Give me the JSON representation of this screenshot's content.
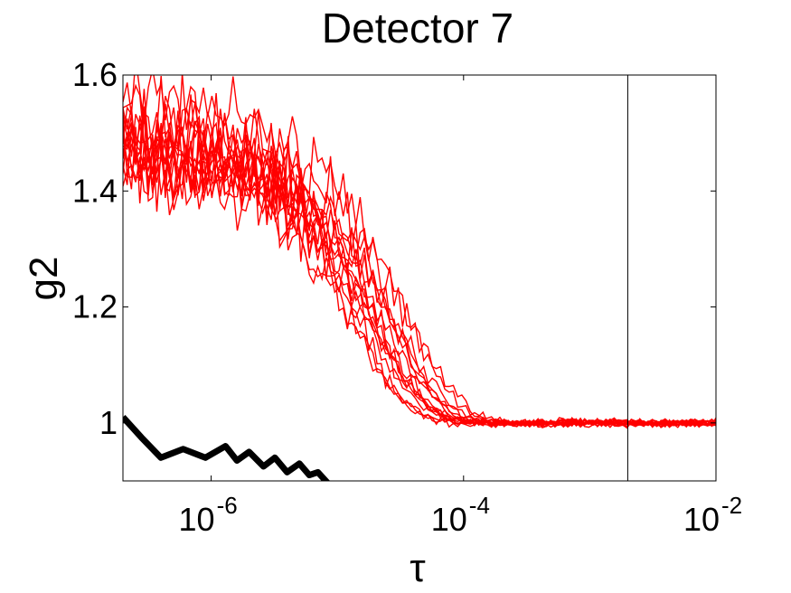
{
  "chart_data": {
    "type": "line",
    "title": "Detector 7",
    "xlabel": "τ",
    "ylabel": "g2",
    "xscale": "log",
    "xlim": [
      2e-07,
      0.01
    ],
    "ylim": [
      0.9,
      1.6
    ],
    "grid": false,
    "xticks": [
      {
        "value": 1e-06,
        "base": "10",
        "exp": "-6"
      },
      {
        "value": 0.0001,
        "base": "10",
        "exp": "-4"
      },
      {
        "value": 0.01,
        "base": "10",
        "exp": "-2"
      }
    ],
    "yticks": [
      {
        "value": 1.0,
        "label": "1"
      },
      {
        "value": 1.2,
        "label": "1.2"
      },
      {
        "value": 1.4,
        "label": "1.4"
      },
      {
        "value": 1.6,
        "label": "1.6"
      }
    ],
    "vertical_line": {
      "x": 0.002,
      "color": "#000000"
    },
    "red_series": {
      "color": "#ff0000",
      "count": 16,
      "baseline": 1.0,
      "amplitude_mean": 0.5,
      "decay_time_mean": 2.5e-05,
      "decay_time_spread": 1.2e-05,
      "noise_short_tau": 0.06,
      "noise_long_tau": 0.005
    },
    "black_series": {
      "color": "#000000",
      "x": [
        2e-07,
        2.8e-07,
        4e-07,
        6e-07,
        9e-07,
        1.3e-06,
        1.6e-06,
        2e-06,
        2.6e-06,
        3.2e-06,
        4e-06,
        5e-06,
        6e-06,
        7e-06,
        8.5e-06
      ],
      "y": [
        1.01,
        0.975,
        0.94,
        0.955,
        0.94,
        0.96,
        0.935,
        0.95,
        0.925,
        0.94,
        0.915,
        0.93,
        0.91,
        0.915,
        0.895
      ]
    }
  }
}
